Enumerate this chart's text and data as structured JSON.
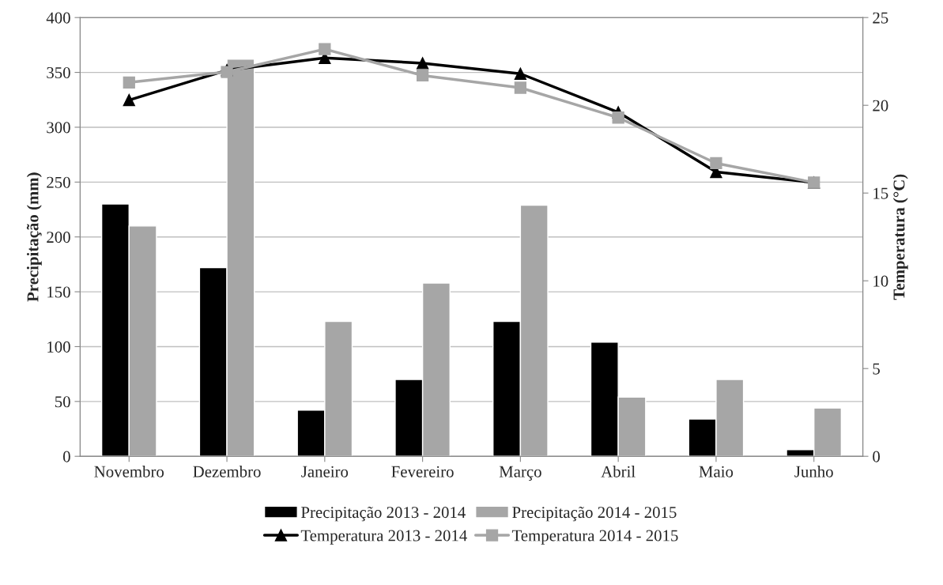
{
  "chart_data": {
    "type": "bar",
    "ylabel": "Precipitação (mm)",
    "y2label": "Temperatura (°C)",
    "categories": [
      "Novembro",
      "Dezembro",
      "Janeiro",
      "Fevereiro",
      "Março",
      "Abril",
      "Maio",
      "Junho"
    ],
    "series": [
      {
        "name": "Precipitação 2013 - 2014",
        "color": "#000000",
        "values": [
          230,
          172,
          42,
          70,
          123,
          104,
          34,
          6
        ]
      },
      {
        "name": "Precipitação 2014 - 2015",
        "color": "#a6a6a6",
        "values": [
          210,
          362,
          123,
          158,
          229,
          54,
          70,
          44
        ]
      },
      {
        "name": "Temperatura 2013 - 2014",
        "type": "line",
        "axis": "y2",
        "marker": "triangle",
        "color": "#000000",
        "values": [
          20.3,
          22.0,
          22.7,
          22.4,
          21.8,
          19.6,
          16.2,
          15.6
        ]
      },
      {
        "name": "Temperatura 2014 - 2015",
        "type": "line",
        "axis": "y2",
        "marker": "square",
        "color": "#a6a6a6",
        "values": [
          21.3,
          21.9,
          23.2,
          21.7,
          21.0,
          19.3,
          16.7,
          15.6
        ]
      }
    ],
    "ylim": [
      0,
      400
    ],
    "yticks": [
      0,
      50,
      100,
      150,
      200,
      250,
      300,
      350,
      400
    ],
    "y2lim": [
      0,
      25
    ],
    "y2ticks": [
      0,
      5,
      10,
      15,
      20,
      25
    ],
    "grid": "y",
    "legend": "bottom"
  }
}
